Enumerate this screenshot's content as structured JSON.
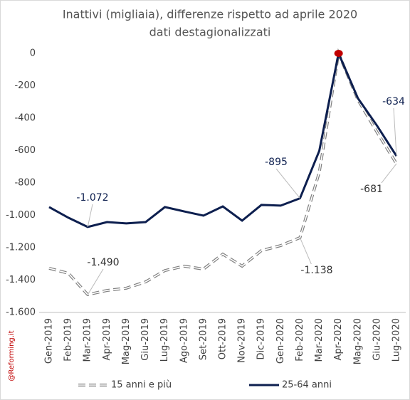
{
  "chart_data": {
    "type": "line",
    "title": "Inattivi (migliaia), differenze rispetto ad aprile 2020",
    "subtitle": "dati destagionalizzati",
    "source": "@Reforming.it",
    "categories": [
      "Gen-2019",
      "Feb-2019",
      "Mar-2019",
      "Apr-2019",
      "Mag-2019",
      "Giu-2019",
      "Lug-2019",
      "Ago-2019",
      "Set-2019",
      "Ott-2019",
      "Nov-2019",
      "Dic-2019",
      "Gen-2020",
      "Feb-2020",
      "Mar-2020",
      "Apr-2020",
      "Mag-2020",
      "Giu-2020",
      "Lug-2020"
    ],
    "series": [
      {
        "name": "15 anni e più",
        "color": "#808080",
        "style": "dashed",
        "values": [
          -1327,
          -1358,
          -1490,
          -1464,
          -1450,
          -1411,
          -1341,
          -1314,
          -1332,
          -1240,
          -1314,
          -1218,
          -1187,
          -1138,
          -734,
          0,
          -286,
          -488,
          -681
        ],
        "value_labels": [
          null,
          null,
          "-1.490",
          null,
          null,
          null,
          null,
          null,
          null,
          null,
          null,
          null,
          null,
          "-1.138",
          null,
          null,
          null,
          null,
          "-681"
        ]
      },
      {
        "name": "25-64 anni",
        "color": "#0d1f4f",
        "style": "solid",
        "values": [
          -949,
          -1015,
          -1072,
          -1042,
          -1050,
          -1042,
          -949,
          -976,
          -1002,
          -945,
          -1033,
          -936,
          -940,
          -895,
          -602,
          0,
          -277,
          -448,
          -634
        ],
        "value_labels": [
          null,
          null,
          "-1.072",
          null,
          null,
          null,
          null,
          null,
          null,
          null,
          null,
          null,
          null,
          "-895",
          null,
          null,
          null,
          null,
          "-634"
        ]
      }
    ],
    "highlight_color": "#c00000",
    "ylim": [
      -1600,
      0
    ],
    "yticks": [
      0,
      -200,
      -400,
      -600,
      -800,
      {
        "value": -1000,
        "label": "-1.000"
      },
      {
        "value": -1200,
        "label": "-1.200"
      },
      {
        "value": -1400,
        "label": "-1.400"
      },
      {
        "value": -1600,
        "label": "-1.600"
      }
    ],
    "grid": false,
    "legend": "bottom"
  }
}
